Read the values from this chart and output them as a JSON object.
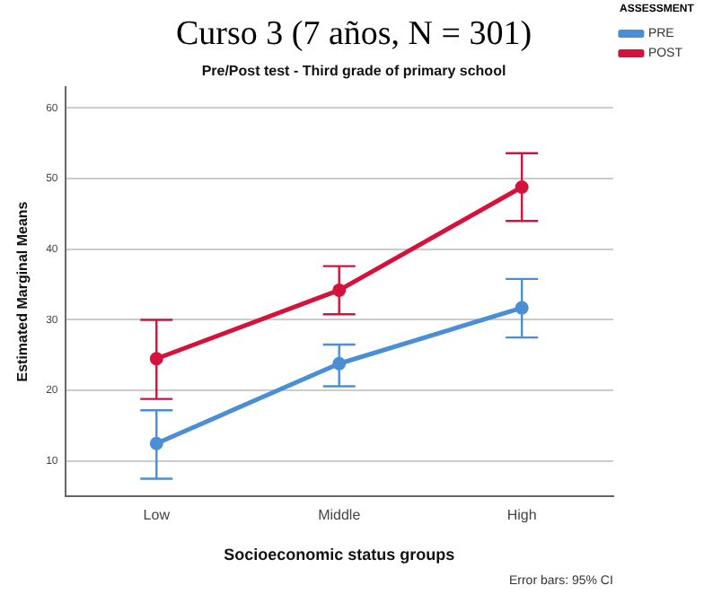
{
  "chart_data": {
    "type": "line",
    "title": "Curso 3 (7 años, N = 301)",
    "subtitle": "Pre/Post test - Third grade of primary school",
    "xlabel": "Socioeconomic status groups",
    "ylabel": "Estimated Marginal Means",
    "legend_title": "ASSESSMENT",
    "annotations": [
      "Error bars: 95% CI"
    ],
    "categories": [
      "Low",
      "Middle",
      "High"
    ],
    "series": [
      {
        "name": "PRE",
        "color": "#4a8fd6",
        "values": [
          12.5,
          23.8,
          31.7
        ],
        "errors": [
          [
            7.5,
            17.2
          ],
          [
            20.6,
            26.5
          ],
          [
            27.5,
            35.8
          ]
        ]
      },
      {
        "name": "POST",
        "color": "#d4123c",
        "values": [
          24.5,
          34.2,
          48.8
        ],
        "errors": [
          [
            18.8,
            30.0
          ],
          [
            30.8,
            37.6
          ],
          [
            44.0,
            53.6
          ]
        ]
      }
    ],
    "ylim": [
      5,
      63
    ],
    "yticks": [
      10,
      20,
      30,
      40,
      50,
      60
    ],
    "grid": "y",
    "legend": "top right",
    "marker": "circle",
    "line_style": "solid"
  }
}
